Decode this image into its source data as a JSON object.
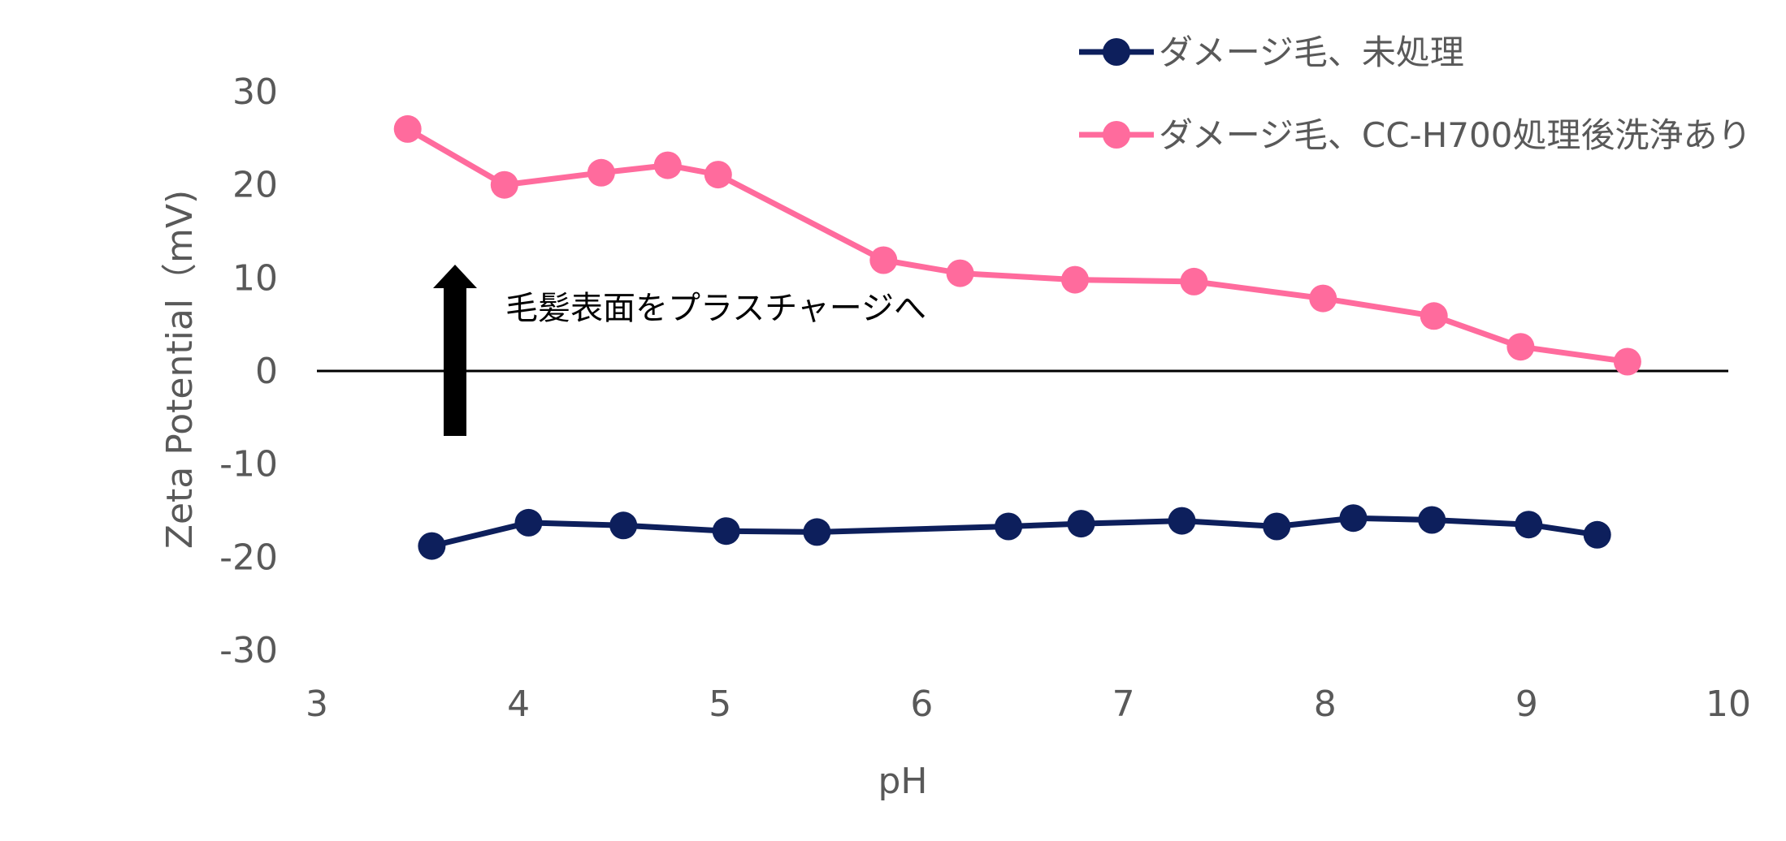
{
  "chart_data": {
    "type": "line",
    "title": "",
    "xlabel": "pH",
    "ylabel": "Zeta Potential（mV)",
    "xlim": [
      3,
      10
    ],
    "ylim": [
      -30,
      30
    ],
    "x_ticks": [
      "3",
      "4",
      "5",
      "6",
      "7",
      "8",
      "9",
      "10"
    ],
    "y_ticks": [
      "30",
      "20",
      "10",
      "0",
      "-10",
      "-20",
      "-30"
    ],
    "grid": false,
    "legend_position": "top-right",
    "series": [
      {
        "name": "ダメージ毛、未処理",
        "color": "#0d1f5c",
        "points": [
          [
            3.57,
            -18.8
          ],
          [
            4.05,
            -16.3
          ],
          [
            4.52,
            -16.6
          ],
          [
            5.03,
            -17.2
          ],
          [
            5.48,
            -17.3
          ],
          [
            6.43,
            -16.7
          ],
          [
            6.79,
            -16.4
          ],
          [
            7.29,
            -16.1
          ],
          [
            7.76,
            -16.7
          ],
          [
            8.14,
            -15.8
          ],
          [
            8.53,
            -16.0
          ],
          [
            9.01,
            -16.5
          ],
          [
            9.35,
            -17.6
          ]
        ]
      },
      {
        "name": "ダメージ毛、CC-H700処理後洗浄あり",
        "color": "#ff6b9d",
        "points": [
          [
            3.45,
            26.0
          ],
          [
            3.93,
            20.0
          ],
          [
            4.41,
            21.3
          ],
          [
            4.74,
            22.1
          ],
          [
            4.99,
            21.1
          ],
          [
            5.81,
            11.9
          ],
          [
            6.19,
            10.5
          ],
          [
            6.76,
            9.8
          ],
          [
            7.35,
            9.6
          ],
          [
            7.99,
            7.8
          ],
          [
            8.54,
            5.9
          ],
          [
            8.97,
            2.6
          ],
          [
            9.5,
            1.0
          ]
        ]
      }
    ],
    "annotation": {
      "text": "毛髪表面をプラスチャージへ",
      "arrow_direction": "up"
    }
  }
}
